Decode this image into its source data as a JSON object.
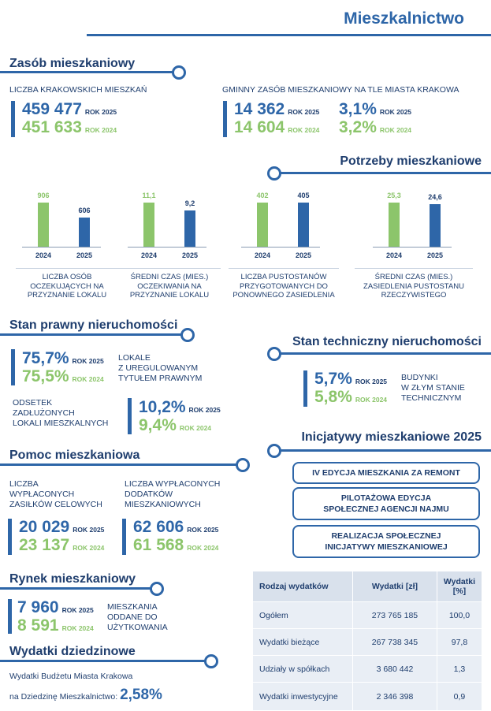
{
  "page_title": "Mieszkalnictwo",
  "zasob": {
    "heading": "Zasób mieszkaniowy",
    "left_label": "LICZBA KRAKOWSKICH MIESZKAŃ",
    "left_2025": "459 477",
    "left_2024": "451 633",
    "right_label": "GMINNY ZASÓB MIESZKANIOWY NA TLE MIASTA KRAKOWA",
    "right_2025": "14 362",
    "right_2024": "14 604",
    "pct_2025": "3,1%",
    "pct_2024": "3,2%",
    "year_2025": "ROK 2025",
    "year_2024": "ROK 2024"
  },
  "potrzeby": {
    "heading": "Potrzeby mieszkaniowe",
    "charts": [
      {
        "cat2024": "2024",
        "cat2025": "2025",
        "val2024": 906,
        "val2025": 606,
        "lab2024": "906",
        "lab2025": "606",
        "label": "LICZBA OSÓB OCZEKUJĄCYCH NA PRZYZNANIE LOKALU",
        "max": 906
      },
      {
        "cat2024": "2024",
        "cat2025": "2025",
        "val2024": 11.1,
        "val2025": 9.2,
        "lab2024": "11,1",
        "lab2025": "9,2",
        "label": "ŚREDNI CZAS (MIES.) OCZEKIWANIA NA PRZYZNANIE LOKALU",
        "max": 11.1
      },
      {
        "cat2024": "2024",
        "cat2025": "2025",
        "val2024": 402,
        "val2025": 405,
        "lab2024": "402",
        "lab2025": "405",
        "label": "LICZBA PUSTOSTANÓW PRZYGOTOWANYCH DO PONOWNEGO ZASIEDLENIA",
        "max": 405
      },
      {
        "cat2024": "2024",
        "cat2025": "2025",
        "val2024": 25.3,
        "val2025": 24.6,
        "lab2024": "25,3",
        "lab2025": "24,6",
        "label": "ŚREDNI CZAS (MIES.) ZASIEDLENIA PUSTOSTANU RZECZYWISTEGO",
        "max": 25.3
      }
    ]
  },
  "prawny": {
    "heading": "Stan prawny nieruchomości",
    "a_2025": "75,7%",
    "a_2024": "75,5%",
    "a_label_1": "LOKALE",
    "a_label_2": "Z UREGULOWANYM",
    "a_label_3": "TYTUŁEM PRAWNYM",
    "b_label_1": "ODSETEK",
    "b_label_2": "ZADŁUŻONYCH",
    "b_label_3": "LOKALI MIESZKALNYCH",
    "b_2025": "10,2%",
    "b_2024": "9,4%"
  },
  "techniczny": {
    "heading": "Stan techniczny nieruchomości",
    "v_2025": "5,7%",
    "v_2024": "5,8%",
    "label_1": "BUDYNKI",
    "label_2": "W ZŁYM STANIE",
    "label_3": "TECHNICZNYM"
  },
  "pomoc": {
    "heading": "Pomoc mieszkaniowa",
    "l_label_1": "LICZBA",
    "l_label_2": "WYPŁACONYCH",
    "l_label_3": "ZASIŁKÓW CELOWYCH",
    "l_2025": "20 029",
    "l_2024": "23 137",
    "r_label_1": "LICZBA WYPŁACONYCH",
    "r_label_2": "DODATKÓW",
    "r_label_3": "MIESZKANIOWYCH",
    "r_2025": "62 606",
    "r_2024": "61 568"
  },
  "inicjatywy": {
    "heading": "Inicjatywy mieszkaniowe 2025",
    "items": [
      {
        "line1": "IV EDYCJA MIESZKANIA ZA REMONT",
        "line2": ""
      },
      {
        "line1": "PILOTAŻOWA EDYCJA",
        "line2": "SPOŁECZNEJ AGENCJI NAJMU"
      },
      {
        "line1": "REALIZACJA SPOŁECZNEJ",
        "line2": "INICJATYWY MIESZKANIOWEJ"
      }
    ]
  },
  "rynek": {
    "heading": "Rynek mieszkaniowy",
    "v_2025": "7 960",
    "v_2024": "8 591",
    "label_1": "MIESZKANIA",
    "label_2": "ODDANE DO",
    "label_3": "UŻYTKOWANIA"
  },
  "wydatki": {
    "heading": "Wydatki dziedzinowe",
    "text_1": "Wydatki Budżetu  Miasta Krakowa",
    "text_2": "na Dziedzinę Mieszkalnictwo:",
    "value": "2,58%"
  },
  "table": {
    "headers": [
      "Rodzaj wydatków",
      "Wydatki [zł]",
      "Wydatki [%]"
    ],
    "rows": [
      [
        "Ogółem",
        "273 765 185",
        "100,0"
      ],
      [
        "Wydatki bieżące",
        "267 738 345",
        "97,8"
      ],
      [
        "Udziały w spółkach",
        "3 680 442",
        "1,3"
      ],
      [
        "Wydatki inwestycyjne",
        "2 346 398",
        "0,9"
      ]
    ]
  },
  "colors": {
    "navy": "#2e66a8",
    "dark": "#1f3e6e",
    "green": "#8cc56b"
  }
}
